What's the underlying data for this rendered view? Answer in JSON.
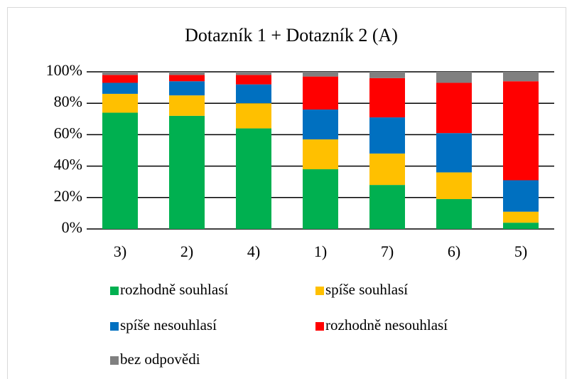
{
  "chart_data": {
    "type": "stacked_bar",
    "title": "Dotazník 1 + Dotazník 2 (A)",
    "categories": [
      "3)",
      "2)",
      "4)",
      "1)",
      "7)",
      "6)",
      "5)"
    ],
    "series": [
      {
        "name": "rozhodně souhlasí",
        "color": "#00b050",
        "values": [
          74,
          72,
          64,
          38,
          28,
          19,
          4
        ]
      },
      {
        "name": "spíše souhlasí",
        "color": "#ffc000",
        "values": [
          12,
          13,
          16,
          19,
          20,
          17,
          7
        ]
      },
      {
        "name": "spíše nesouhlasí",
        "color": "#0070c0",
        "values": [
          7,
          9,
          12,
          19,
          23,
          25,
          20
        ]
      },
      {
        "name": "rozhodně nesouhlasí",
        "color": "#ff0000",
        "values": [
          5,
          4,
          6,
          21,
          25,
          32,
          63
        ]
      },
      {
        "name": "bez odpovědi",
        "color": "#808080",
        "values": [
          2,
          2,
          2,
          3,
          4,
          7,
          6
        ]
      }
    ],
    "ylim": [
      0,
      100
    ],
    "yticks": [
      {
        "value": 0,
        "label": "0%"
      },
      {
        "value": 20,
        "label": "20%"
      },
      {
        "value": 40,
        "label": "40%"
      },
      {
        "value": 60,
        "label": "60%"
      },
      {
        "value": 80,
        "label": "80%"
      },
      {
        "value": 100,
        "label": "100%"
      }
    ],
    "grid": true
  }
}
